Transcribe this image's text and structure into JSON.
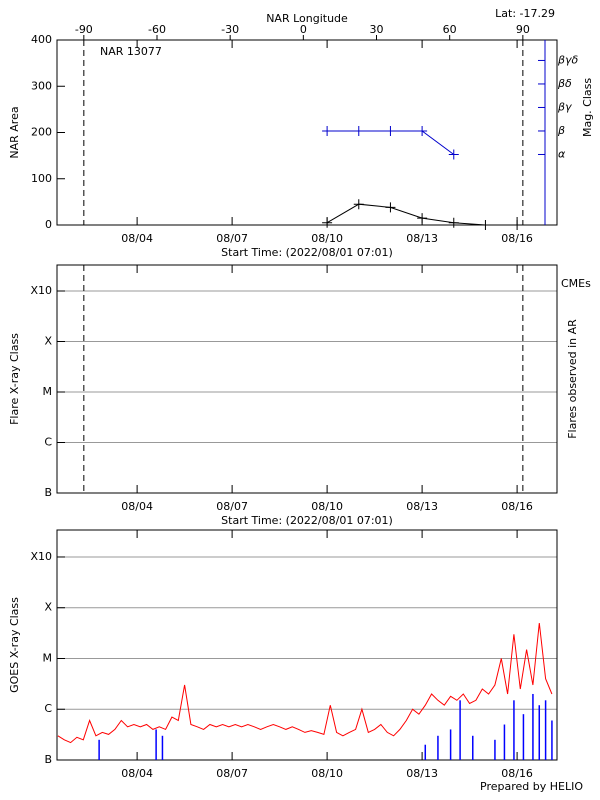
{
  "chart_data": [
    {
      "type": "line",
      "title": "NAR 13077",
      "annotation": "Lat: -17.29",
      "x2label": "NAR Longitude",
      "xlabel": "Start Time: (2022/08/01 07:01)",
      "ylabel": "NAR Area",
      "y2label": "Mag. Class",
      "xlim": [
        1.47,
        17.26
      ],
      "xticks": [
        {
          "value": 4,
          "label": "08/04"
        },
        {
          "value": 7,
          "label": "08/07"
        },
        {
          "value": 10,
          "label": "08/10"
        },
        {
          "value": 13,
          "label": "08/13"
        },
        {
          "value": 16,
          "label": "08/16"
        }
      ],
      "x2lim": [
        -101,
        104
      ],
      "x2ticks": [
        -90,
        -60,
        -30,
        0,
        30,
        60,
        90
      ],
      "vlines": [
        -90,
        90
      ],
      "ylim": [
        0,
        400
      ],
      "yticks": [
        0,
        100,
        200,
        300,
        400
      ],
      "y2lim": [
        0,
        7.87
      ],
      "y2ticks": [
        {
          "value": 3,
          "label": "α"
        },
        {
          "value": 4,
          "label": "β"
        },
        {
          "value": 5,
          "label": "βγ"
        },
        {
          "value": 6,
          "label": "βδ"
        },
        {
          "value": 7,
          "label": "βγδ"
        }
      ],
      "y2color": "#0000cc",
      "series": [
        {
          "color": "#000000",
          "x": [
            10,
            11,
            12,
            13,
            14,
            15,
            16
          ],
          "values": [
            5,
            45,
            38,
            15,
            5,
            0,
            0
          ]
        },
        {
          "color": "#0000cc",
          "axis": "y2",
          "x": [
            10,
            11,
            12,
            13,
            14
          ],
          "values": [
            4,
            4,
            4,
            4,
            3
          ]
        }
      ]
    },
    {
      "type": "line",
      "xlabel": "Start Time: (2022/08/01 07:01)",
      "ylabel": "Flare X-ray Class",
      "y2label": "Flares observed in AR",
      "xlim": [
        1.47,
        17.26
      ],
      "xticks": [
        {
          "value": 4,
          "label": "08/04"
        },
        {
          "value": 7,
          "label": "08/07"
        },
        {
          "value": 10,
          "label": "08/10"
        },
        {
          "value": 13,
          "label": "08/13"
        },
        {
          "value": 16,
          "label": "08/16"
        }
      ],
      "x2lim": [
        -101,
        104
      ],
      "vlines": [
        -90,
        90
      ],
      "ylog": true,
      "ylim": [
        1e-07,
        0.00327
      ],
      "grid": true,
      "yticks": [
        {
          "value": 1e-07,
          "label": "B"
        },
        {
          "value": 1e-06,
          "label": "C"
        },
        {
          "value": 1e-05,
          "label": "M"
        },
        {
          "value": 0.0001,
          "label": "X"
        },
        {
          "value": 0.001,
          "label": "X10"
        }
      ],
      "series": [
        {
          "name": "CMEs",
          "color": "#ff0000",
          "x": [],
          "values": []
        }
      ]
    },
    {
      "type": "line",
      "ylabel": "GOES X-ray Class",
      "annotation": "Prepared by HELIO",
      "xlim": [
        1.47,
        17.26
      ],
      "xticks": [
        {
          "value": 4,
          "label": "08/04"
        },
        {
          "value": 7,
          "label": "08/07"
        },
        {
          "value": 10,
          "label": "08/10"
        },
        {
          "value": 13,
          "label": "08/13"
        },
        {
          "value": 16,
          "label": "08/16"
        }
      ],
      "ylog": true,
      "ylim": [
        1e-07,
        0.0034
      ],
      "grid": true,
      "yticks": [
        {
          "value": 1e-07,
          "label": "B"
        },
        {
          "value": 1e-06,
          "label": "C"
        },
        {
          "value": 1e-05,
          "label": "M"
        },
        {
          "value": 0.0001,
          "label": "X"
        },
        {
          "value": 0.001,
          "label": "X10"
        }
      ],
      "series": [
        {
          "color": "#ff0000",
          "x": [
            1.5,
            1.7,
            1.9,
            2.1,
            2.3,
            2.5,
            2.7,
            2.9,
            3.1,
            3.3,
            3.5,
            3.7,
            3.9,
            4.1,
            4.3,
            4.5,
            4.7,
            4.9,
            5.1,
            5.3,
            5.5,
            5.7,
            5.9,
            6.1,
            6.3,
            6.5,
            6.7,
            6.9,
            7.1,
            7.3,
            7.5,
            7.7,
            7.9,
            8.1,
            8.3,
            8.5,
            8.7,
            8.9,
            9.1,
            9.3,
            9.5,
            9.7,
            9.9,
            10.1,
            10.3,
            10.5,
            10.7,
            10.9,
            11.1,
            11.3,
            11.5,
            11.7,
            11.9,
            12.1,
            12.3,
            12.5,
            12.7,
            12.9,
            13.1,
            13.3,
            13.5,
            13.7,
            13.9,
            14.1,
            14.3,
            14.5,
            14.7,
            14.9,
            15.1,
            15.3,
            15.5,
            15.7,
            15.9,
            16.1,
            16.3,
            16.5,
            16.7,
            16.9,
            17.1
          ],
          "values": [
            3e-07,
            2.5e-07,
            2.2e-07,
            2.8e-07,
            2.5e-07,
            6e-07,
            3e-07,
            3.5e-07,
            3.2e-07,
            4e-07,
            6e-07,
            4.5e-07,
            5e-07,
            4.5e-07,
            5e-07,
            4e-07,
            4.5e-07,
            4e-07,
            7e-07,
            6e-07,
            3e-06,
            5e-07,
            4.5e-07,
            4e-07,
            5e-07,
            4.5e-07,
            5e-07,
            4.5e-07,
            5e-07,
            4.5e-07,
            5e-07,
            4.5e-07,
            4e-07,
            4.5e-07,
            5e-07,
            4.5e-07,
            4e-07,
            4.5e-07,
            4e-07,
            3.5e-07,
            3.8e-07,
            3.5e-07,
            3.2e-07,
            1.2e-06,
            3.5e-07,
            3e-07,
            3.5e-07,
            4e-07,
            1e-06,
            3.5e-07,
            4e-07,
            5e-07,
            3.5e-07,
            3e-07,
            4e-07,
            6e-07,
            1e-06,
            8e-07,
            1.2e-06,
            2e-06,
            1.5e-06,
            1.2e-06,
            1.8e-06,
            1.5e-06,
            2e-06,
            1.3e-06,
            1.5e-06,
            2.5e-06,
            2e-06,
            3e-06,
            1e-05,
            2e-06,
            3e-05,
            2.5e-06,
            1.5e-05,
            3e-06,
            5e-05,
            4e-06,
            2e-06
          ]
        },
        {
          "color": "#0000ff",
          "type": "bar",
          "x": [
            2.8,
            4.6,
            4.8,
            13.1,
            13.5,
            13.9,
            14.2,
            14.6,
            15.3,
            15.6,
            15.9,
            16.2,
            16.5,
            16.7,
            16.9,
            17.1
          ],
          "values": [
            2.5e-07,
            4e-07,
            3e-07,
            2e-07,
            3e-07,
            4e-07,
            1.5e-06,
            3e-07,
            2.5e-07,
            5e-07,
            1.5e-06,
            8e-07,
            2e-06,
            1.2e-06,
            1.5e-06,
            6e-07
          ]
        }
      ]
    }
  ]
}
